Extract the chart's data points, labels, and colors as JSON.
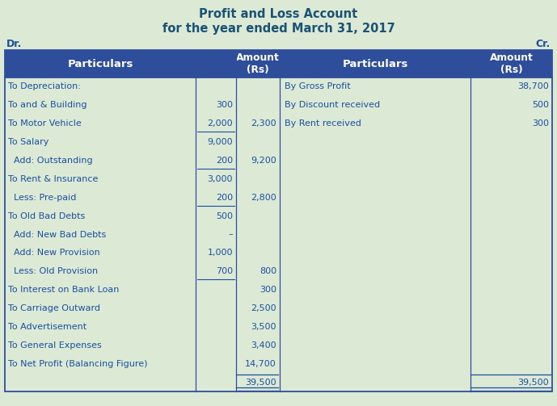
{
  "title_line1": "Profit and Loss Account",
  "title_line2": "for the year ended March 31, 2017",
  "title_color": "#1a5276",
  "background_color": "#dce9d5",
  "header_bg_color": "#2e4d9b",
  "header_text_color": "#ffffff",
  "body_text_color": "#1a4fa0",
  "dr_label": "Dr.",
  "cr_label": "Cr.",
  "left_rows": [
    {
      "particulars": "To Depreciation:",
      "sub_amt": "",
      "amt": "",
      "underline_sub": false
    },
    {
      "particulars": "To and & Building",
      "sub_amt": "300",
      "amt": "",
      "underline_sub": false
    },
    {
      "particulars": "To Motor Vehicle",
      "sub_amt": "2,000",
      "amt": "2,300",
      "underline_sub": true
    },
    {
      "particulars": "To Salary",
      "sub_amt": "9,000",
      "amt": "",
      "underline_sub": false
    },
    {
      "particulars": "  Add: Outstanding",
      "sub_amt": "200",
      "amt": "9,200",
      "underline_sub": true
    },
    {
      "particulars": "To Rent & Insurance",
      "sub_amt": "3,000",
      "amt": "",
      "underline_sub": false
    },
    {
      "particulars": "  Less: Pre-paid",
      "sub_amt": "200",
      "amt": "2,800",
      "underline_sub": true
    },
    {
      "particulars": "To Old Bad Debts",
      "sub_amt": "500",
      "amt": "",
      "underline_sub": false
    },
    {
      "particulars": "  Add: New Bad Debts",
      "sub_amt": "–",
      "amt": "",
      "underline_sub": false
    },
    {
      "particulars": "  Add: New Provision",
      "sub_amt": "1,000",
      "amt": "",
      "underline_sub": false
    },
    {
      "particulars": "  Less: Old Provision",
      "sub_amt": "700",
      "amt": "800",
      "underline_sub": true
    },
    {
      "particulars": "To Interest on Bank Loan",
      "sub_amt": "",
      "amt": "300",
      "underline_sub": false
    },
    {
      "particulars": "To Carriage Outward",
      "sub_amt": "",
      "amt": "2,500",
      "underline_sub": false
    },
    {
      "particulars": "To Advertisement",
      "sub_amt": "",
      "amt": "3,500",
      "underline_sub": false
    },
    {
      "particulars": "To General Expenses",
      "sub_amt": "",
      "amt": "3,400",
      "underline_sub": false
    },
    {
      "particulars": "To Net Profit (Balancing Figure)",
      "sub_amt": "",
      "amt": "14,700",
      "underline_sub": false
    },
    {
      "particulars": "",
      "sub_amt": "",
      "amt": "39,500",
      "underline_sub": false
    }
  ],
  "right_rows": [
    {
      "particulars": "By Gross Profit",
      "amt": "38,700"
    },
    {
      "particulars": "By Discount received",
      "amt": "500"
    },
    {
      "particulars": "By Rent received",
      "amt": "300"
    },
    {
      "particulars": "",
      "amt": ""
    },
    {
      "particulars": "",
      "amt": ""
    },
    {
      "particulars": "",
      "amt": ""
    },
    {
      "particulars": "",
      "amt": ""
    },
    {
      "particulars": "",
      "amt": ""
    },
    {
      "particulars": "",
      "amt": ""
    },
    {
      "particulars": "",
      "amt": ""
    },
    {
      "particulars": "",
      "amt": ""
    },
    {
      "particulars": "",
      "amt": ""
    },
    {
      "particulars": "",
      "amt": ""
    },
    {
      "particulars": "",
      "amt": ""
    },
    {
      "particulars": "",
      "amt": ""
    },
    {
      "particulars": "",
      "amt": ""
    },
    {
      "particulars": "",
      "amt": "39,500"
    }
  ],
  "total_row_idx": 16,
  "fig_width": 6.89,
  "fig_height": 5.03,
  "dpi": 100
}
